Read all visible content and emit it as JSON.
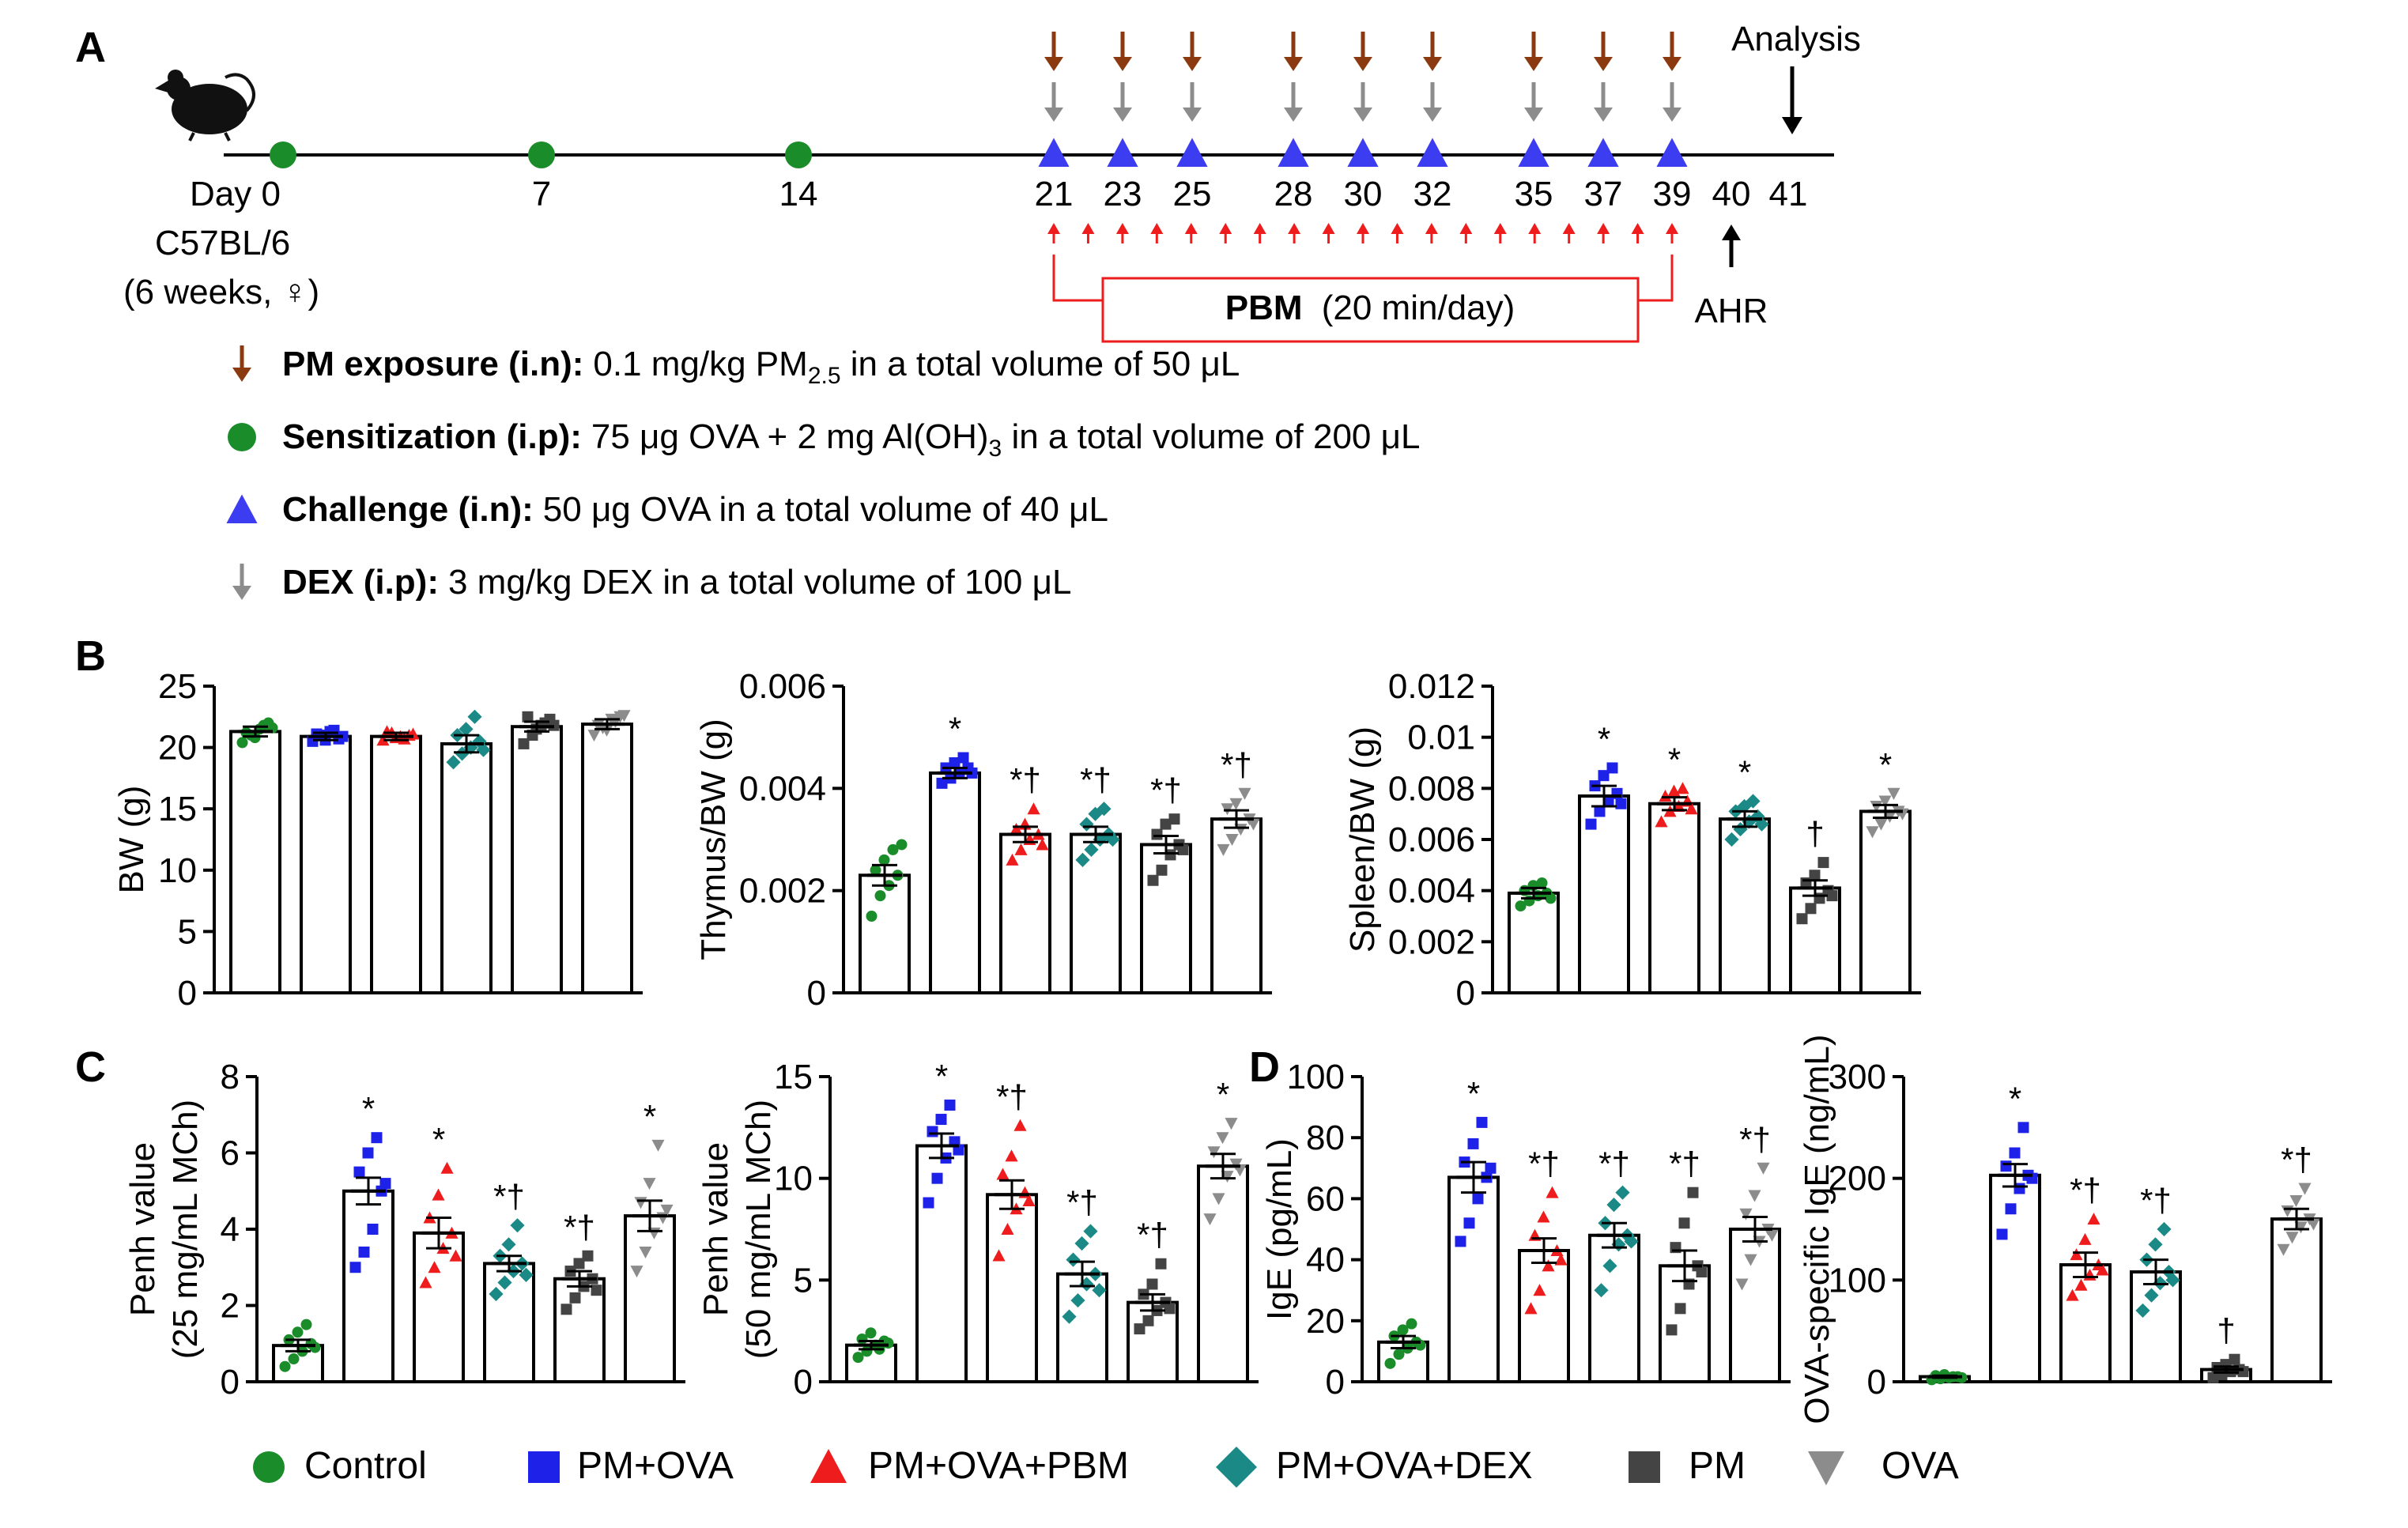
{
  "panel_labels": {
    "A": "A",
    "B": "B",
    "C": "C",
    "D": "D"
  },
  "colors": {
    "Control": "#1a8c2a",
    "PM+OVA": "#1e22e8",
    "PM+OVA+PBM": "#ee1c1c",
    "PM+OVA+DEX": "#1b8a86",
    "PM": "#444444",
    "OVA": "#8c8c8c",
    "pm_arrow": "#8b3a10",
    "challenge": "#3c3cf0",
    "dex_arrow": "#8c8c8c",
    "pbm": "#ee1c1c"
  },
  "timeline": {
    "analysis_label": "Analysis",
    "day_prefix": "Day 0",
    "strain": "C57BL/6",
    "age_sex": "(6 weeks, ♀)",
    "sensitization_days": [
      0,
      7,
      14
    ],
    "challenge_days": [
      21,
      23,
      25,
      28,
      30,
      32,
      35,
      37,
      39
    ],
    "day_labels": [
      "7",
      "14",
      "21",
      "23",
      "25",
      "28",
      "30",
      "32",
      "35",
      "37",
      "39",
      "40",
      "41"
    ],
    "pbm_label_bold": "PBM",
    "pbm_label_rest": "(20 min/day)",
    "ahr_label": "AHR",
    "pbm_arrow_count": 19
  },
  "legend_A": [
    {
      "bold": "PM exposure (i.n):",
      "text_pre": "0.1 mg/kg PM",
      "sub": "2.5",
      "text_post": " in a total volume of 50 μL",
      "icon": "pm-arrow"
    },
    {
      "bold": "Sensitization (i.p):",
      "text_pre": "75 μg OVA + 2 mg Al(OH)",
      "sub": "3",
      "text_post": " in a total volume of 200 μL",
      "icon": "circle"
    },
    {
      "bold": "Challenge (i.n):",
      "text_pre": "50 μg OVA in a total volume of 40 μL",
      "sub": "",
      "text_post": "",
      "icon": "triangle"
    },
    {
      "bold": "DEX (i.p):",
      "text_pre": "3 mg/kg DEX in a total volume of 100 μL",
      "sub": "",
      "text_post": "",
      "icon": "dex-arrow"
    }
  ],
  "groups": [
    "Control",
    "PM+OVA",
    "PM+OVA+PBM",
    "PM+OVA+DEX",
    "PM",
    "OVA"
  ],
  "chart_data": [
    {
      "id": "bw",
      "type": "bar",
      "panel": "B",
      "ylabel": "BW (g)",
      "ylim": [
        0,
        25
      ],
      "yticks": [
        "0",
        "5",
        "10",
        "15",
        "20",
        "25"
      ],
      "categories": [
        "Control",
        "PM+OVA",
        "PM+OVA+PBM",
        "PM+OVA+DEX",
        "PM",
        "OVA"
      ],
      "values": [
        21.3,
        20.9,
        20.9,
        20.3,
        21.7,
        21.9
      ],
      "errors": [
        0.4,
        0.3,
        0.3,
        0.7,
        0.4,
        0.4
      ],
      "annotations": [
        "",
        "",
        "",
        "",
        "",
        ""
      ],
      "points": [
        [
          20.4,
          21.0,
          21.5,
          22.0,
          21.2,
          20.8,
          21.8,
          21.6
        ],
        [
          20.5,
          21.0,
          21.3,
          20.7,
          21.1,
          20.6,
          21.4,
          20.9
        ],
        [
          20.6,
          21.2,
          20.9,
          21.0,
          21.3,
          20.8,
          20.7,
          21.1
        ],
        [
          18.8,
          19.5,
          20.0,
          20.5,
          21.0,
          21.5,
          22.5,
          19.8
        ],
        [
          20.3,
          21.0,
          21.8,
          22.3,
          22.5,
          21.5,
          22.0,
          21.8
        ],
        [
          21.0,
          21.6,
          22.3,
          22.5,
          21.8,
          21.4,
          22.1,
          22.6
        ]
      ]
    },
    {
      "id": "thymus",
      "type": "bar",
      "panel": "B",
      "ylabel": "Thymus/BW (g)",
      "ylim": [
        0,
        0.006
      ],
      "yticks": [
        "0",
        "0.002",
        "0.004",
        "0.006"
      ],
      "categories": [
        "Control",
        "PM+OVA",
        "PM+OVA+PBM",
        "PM+OVA+DEX",
        "PM",
        "OVA"
      ],
      "values": [
        0.0023,
        0.0043,
        0.0031,
        0.0031,
        0.0029,
        0.0034
      ],
      "errors": [
        0.0002,
        0.0001,
        0.00015,
        0.00015,
        0.00017,
        0.00017
      ],
      "annotations": [
        "",
        "*",
        "*†",
        "*†",
        "*†",
        "*†"
      ],
      "points": [
        [
          0.0015,
          0.0019,
          0.0021,
          0.0023,
          0.0024,
          0.0026,
          0.0028,
          0.0029
        ],
        [
          0.0041,
          0.0042,
          0.0043,
          0.0044,
          0.0044,
          0.0045,
          0.0046,
          0.0043
        ],
        [
          0.0026,
          0.0028,
          0.003,
          0.0031,
          0.0032,
          0.0033,
          0.0036,
          0.0029
        ],
        [
          0.0026,
          0.0028,
          0.003,
          0.0031,
          0.0033,
          0.0035,
          0.0036,
          0.003
        ],
        [
          0.0022,
          0.0024,
          0.0027,
          0.0029,
          0.0031,
          0.0033,
          0.0034,
          0.0028
        ],
        [
          0.0028,
          0.003,
          0.0032,
          0.0034,
          0.0036,
          0.0037,
          0.0039,
          0.0033
        ]
      ]
    },
    {
      "id": "spleen",
      "type": "bar",
      "panel": "B",
      "ylabel": "Spleen/BW (g)",
      "ylim": [
        0,
        0.012
      ],
      "yticks": [
        "0",
        "0.002",
        "0.004",
        "0.006",
        "0.008",
        "0.01",
        "0.012"
      ],
      "categories": [
        "Control",
        "PM+OVA",
        "PM+OVA+PBM",
        "PM+OVA+DEX",
        "PM",
        "OVA"
      ],
      "values": [
        0.0039,
        0.0077,
        0.0074,
        0.0068,
        0.0041,
        0.0071
      ],
      "errors": [
        0.0002,
        0.0004,
        0.00025,
        0.0003,
        0.0003,
        0.00025
      ],
      "annotations": [
        "",
        "*",
        "*",
        "*",
        "†",
        "*"
      ],
      "points": [
        [
          0.0034,
          0.0036,
          0.0038,
          0.0039,
          0.004,
          0.0042,
          0.0043,
          0.0037
        ],
        [
          0.0066,
          0.0071,
          0.0075,
          0.0078,
          0.0081,
          0.0085,
          0.0088,
          0.0074
        ],
        [
          0.0067,
          0.0071,
          0.0073,
          0.0075,
          0.0077,
          0.0079,
          0.008,
          0.0072
        ],
        [
          0.006,
          0.0064,
          0.0067,
          0.0069,
          0.0071,
          0.0073,
          0.0075,
          0.0066
        ],
        [
          0.0029,
          0.0033,
          0.0037,
          0.004,
          0.0043,
          0.0046,
          0.0051,
          0.0038
        ],
        [
          0.0063,
          0.0066,
          0.0069,
          0.0071,
          0.0073,
          0.0075,
          0.0078,
          0.007
        ]
      ]
    },
    {
      "id": "penh25",
      "type": "bar",
      "panel": "C",
      "ylabel": "Penh value",
      "ylabel2": "(25 mg/mL MCh)",
      "ylim": [
        0,
        8
      ],
      "yticks": [
        "0",
        "2",
        "4",
        "6",
        "8"
      ],
      "categories": [
        "Control",
        "PM+OVA",
        "PM+OVA+PBM",
        "PM+OVA+DEX",
        "PM",
        "OVA"
      ],
      "values": [
        0.95,
        5.0,
        3.9,
        3.1,
        2.7,
        4.35
      ],
      "errors": [
        0.15,
        0.35,
        0.4,
        0.2,
        0.2,
        0.4
      ],
      "annotations": [
        "",
        "*",
        "*",
        "*†",
        "*†",
        "*"
      ],
      "points": [
        [
          0.4,
          0.6,
          0.8,
          1.0,
          1.1,
          1.3,
          1.5,
          0.9
        ],
        [
          3.0,
          3.4,
          4.0,
          5.0,
          5.5,
          6.0,
          6.4,
          5.2
        ],
        [
          2.6,
          3.0,
          3.5,
          3.9,
          4.3,
          4.9,
          5.6,
          3.3
        ],
        [
          2.3,
          2.6,
          2.9,
          3.1,
          3.3,
          3.6,
          4.1,
          2.8
        ],
        [
          1.9,
          2.2,
          2.5,
          2.7,
          2.9,
          3.1,
          3.3,
          2.4
        ],
        [
          2.9,
          3.4,
          3.9,
          4.3,
          4.7,
          5.2,
          6.2,
          4.5
        ]
      ]
    },
    {
      "id": "penh50",
      "type": "bar",
      "panel": "C",
      "ylabel": "Penh value",
      "ylabel2": "(50 mg/mL MCh)",
      "ylim": [
        0,
        15
      ],
      "yticks": [
        "0",
        "5",
        "10",
        "15"
      ],
      "categories": [
        "Control",
        "PM+OVA",
        "PM+OVA+PBM",
        "PM+OVA+DEX",
        "PM",
        "OVA"
      ],
      "values": [
        1.8,
        11.6,
        9.2,
        5.3,
        3.9,
        10.6
      ],
      "errors": [
        0.2,
        0.6,
        0.7,
        0.6,
        0.4,
        0.6
      ],
      "annotations": [
        "",
        "*",
        "*†",
        "*†",
        "*†",
        "*"
      ],
      "points": [
        [
          1.2,
          1.5,
          1.8,
          2.0,
          2.1,
          2.4,
          1.6,
          1.9
        ],
        [
          8.8,
          10.0,
          11.0,
          11.8,
          12.3,
          12.9,
          13.6,
          11.4
        ],
        [
          6.2,
          7.5,
          8.5,
          9.3,
          10.2,
          11.1,
          12.6,
          8.9
        ],
        [
          3.2,
          4.0,
          4.8,
          5.3,
          6.0,
          6.8,
          7.4,
          4.5
        ],
        [
          2.6,
          3.0,
          3.5,
          3.9,
          4.3,
          4.8,
          5.8,
          3.6
        ],
        [
          8.0,
          9.0,
          10.1,
          10.7,
          11.3,
          12.0,
          12.7,
          10.4
        ]
      ]
    },
    {
      "id": "ige",
      "type": "bar",
      "panel": "D",
      "ylabel": "IgE (pg/mL)",
      "ylim": [
        0,
        100
      ],
      "yticks": [
        "0",
        "20",
        "40",
        "60",
        "80",
        "100"
      ],
      "categories": [
        "Control",
        "PM+OVA",
        "PM+OVA+PBM",
        "PM+OVA+DEX",
        "PM",
        "OVA"
      ],
      "values": [
        13,
        67,
        43,
        48,
        38,
        50
      ],
      "errors": [
        2,
        5,
        4,
        4,
        5,
        4
      ],
      "annotations": [
        "",
        "*",
        "*†",
        "*†",
        "*†",
        "*†"
      ],
      "points": [
        [
          6,
          9,
          11,
          13,
          15,
          17,
          19,
          12
        ],
        [
          46,
          52,
          60,
          67,
          72,
          78,
          85,
          70
        ],
        [
          24,
          30,
          38,
          43,
          48,
          54,
          62,
          40
        ],
        [
          30,
          38,
          45,
          48,
          52,
          58,
          62,
          46
        ],
        [
          17,
          24,
          32,
          38,
          44,
          52,
          62,
          36
        ],
        [
          32,
          40,
          46,
          50,
          55,
          61,
          70,
          48
        ]
      ]
    },
    {
      "id": "ova_ige",
      "type": "bar",
      "panel": "D",
      "ylabel": "OVA-specific IgE (ng/mL)",
      "ylim": [
        0,
        300
      ],
      "yticks": [
        "0",
        "100",
        "200",
        "300"
      ],
      "categories": [
        "Control",
        "PM+OVA",
        "PM+OVA+PBM",
        "PM+OVA+DEX",
        "PM",
        "OVA"
      ],
      "values": [
        5,
        203,
        115,
        108,
        12,
        160
      ],
      "errors": [
        1,
        11,
        12,
        12,
        3,
        10
      ],
      "annotations": [
        "",
        "*",
        "*†",
        "*†",
        "†",
        "*†"
      ],
      "points": [
        [
          2,
          3,
          4,
          5,
          6,
          7,
          5,
          4
        ],
        [
          145,
          170,
          190,
          203,
          212,
          225,
          250,
          200
        ],
        [
          85,
          95,
          105,
          115,
          125,
          140,
          160,
          110
        ],
        [
          70,
          85,
          97,
          108,
          120,
          135,
          150,
          100
        ],
        [
          4,
          7,
          10,
          12,
          14,
          17,
          22,
          10
        ],
        [
          130,
          142,
          152,
          160,
          168,
          178,
          190,
          155
        ]
      ]
    }
  ],
  "legend_bottom": [
    "Control",
    "PM+OVA",
    "PM+OVA+PBM",
    "PM+OVA+DEX",
    "PM",
    "OVA"
  ]
}
